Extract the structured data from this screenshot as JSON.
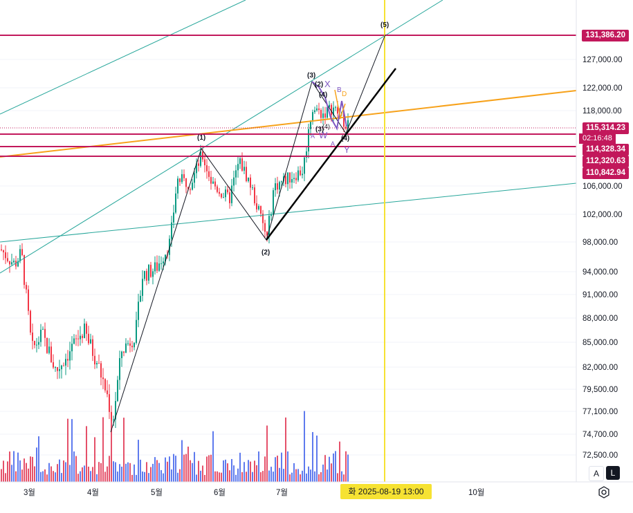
{
  "chart": {
    "price_axis": {
      "ticks": [
        "131,386.20",
        "127,000.00",
        "122,000.00",
        "118,000.00",
        "115,314.23",
        "114,328.34",
        "112,320.63",
        "110,842.94",
        "106,000.00",
        "102,000.00",
        "98,000.00",
        "94,000.00",
        "91,000.00",
        "88,000.00",
        "85,000.00",
        "82,000.00",
        "79,500.00",
        "77,100.00",
        "74,700.00",
        "72,500.00"
      ],
      "grid_values": [
        127000,
        122000,
        118000,
        106000,
        102000,
        98000,
        94000,
        91000,
        88000,
        85000,
        82000,
        79500,
        77100,
        74700,
        72500
      ]
    },
    "time_axis": {
      "months": [
        "3월",
        "4월",
        "5월",
        "6월",
        "7월",
        "10월"
      ],
      "cursor_date": "화 2025-08-19   13:00"
    },
    "price_tags": {
      "top_line": "131,386.20",
      "last_price": "115,314.23",
      "countdown": "02:16:48",
      "level_1": "114,328.34",
      "level_2": "112,320.63",
      "level_3": "110,842.94"
    },
    "wave_labels": [
      "(1)",
      "(2)",
      "(3)",
      "(4)",
      "(5)",
      "(2)",
      "(4)",
      "(3)",
      "(4)",
      "X",
      "B",
      "D",
      "A",
      "W",
      "A",
      "Y"
    ],
    "colors": {
      "up_candle": "#089981",
      "down_candle": "#f23645",
      "horizontal_level": "#c2185b",
      "teal_channel": "#26a69a",
      "orange_trend": "#f7a21b",
      "cursor_line": "#f6e232",
      "wave_purple": "#7e57c2"
    }
  },
  "controls": {
    "auto_label": "A",
    "log_label": "L",
    "settings_icon": "gear-icon"
  }
}
